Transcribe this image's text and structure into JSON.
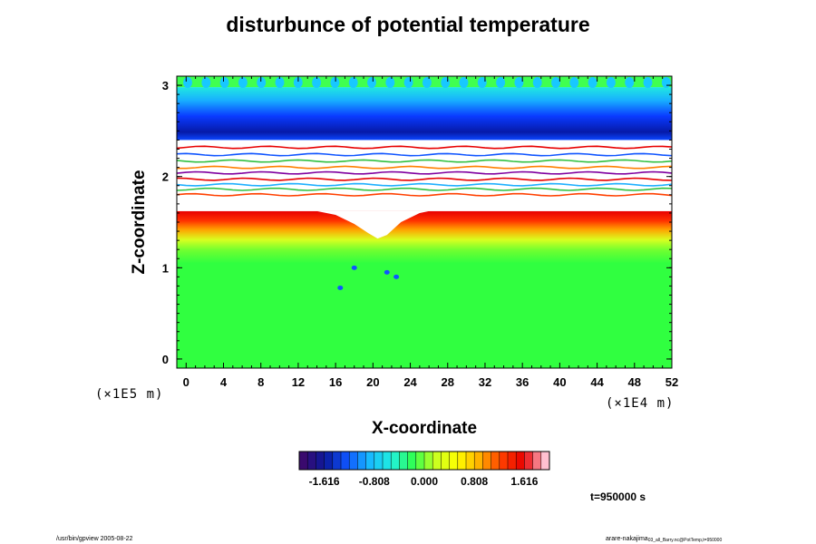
{
  "chart_data": {
    "type": "heatmap",
    "title": "disturbunce of potential temperature",
    "xlabel": "X-coordinate",
    "ylabel": "Z-coordinate",
    "x_unit": "(×1E4 m)",
    "y_unit": "(×1E5 m)",
    "xlim": [
      -1,
      52
    ],
    "ylim": [
      -0.1,
      3.1
    ],
    "x_ticks": [
      "0",
      "4",
      "8",
      "12",
      "16",
      "20",
      "24",
      "28",
      "32",
      "36",
      "40",
      "44",
      "48",
      "52"
    ],
    "y_ticks": [
      "0",
      "1",
      "2",
      "3"
    ],
    "colorbar": {
      "range": [
        -2.02,
        2.02
      ],
      "tick_labels": [
        "-1.616",
        "-0.808",
        "0.000",
        "0.808",
        "1.616"
      ],
      "colors": [
        "#3a0a6e",
        "#0a1a9e",
        "#1055ff",
        "#18b8ff",
        "#20f0e0",
        "#30ff50",
        "#c8ff20",
        "#ffff00",
        "#ffb000",
        "#ff4000",
        "#e80000",
        "#ffc0d0"
      ]
    },
    "regions": [
      {
        "z_range": [
          2.95,
          3.1
        ],
        "value": "near 0 (green) with periodic blue cells"
      },
      {
        "z_range": [
          2.4,
          2.95
        ],
        "value": "-0.8 to -1.6 (cyan to blue)"
      },
      {
        "z_range": [
          1.78,
          2.4
        ],
        "value": "out of range (white) with thin contour bands"
      },
      {
        "z_range": [
          1.2,
          1.6
        ],
        "value": "1.2 to 1.8 (orange to red)"
      },
      {
        "z_range": [
          -0.1,
          1.2
        ],
        "value": "about 0 (green)"
      }
    ],
    "time_label": "t=950000 s"
  },
  "footer": {
    "left": "/usr/bin/gpview 2005-08-22",
    "right": "arare-nakajima",
    "right_sub": "03_all_Barry.nc@PotTemp,t=950000"
  }
}
